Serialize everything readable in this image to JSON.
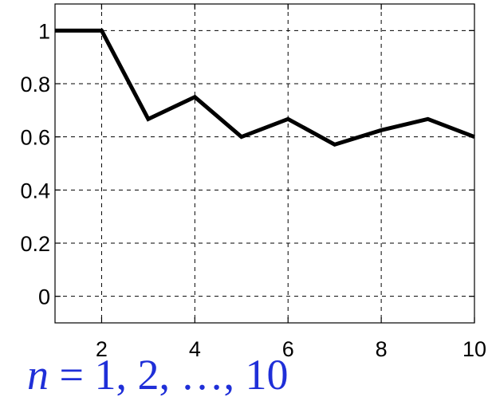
{
  "chart_data": {
    "type": "line",
    "title": "",
    "xlabel": "",
    "ylabel": "",
    "xlim": [
      1,
      10
    ],
    "ylim": [
      -0.1,
      1.1
    ],
    "xticks": [
      2,
      4,
      6,
      8,
      10
    ],
    "yticks": [
      0,
      0.2,
      0.4,
      0.6,
      0.8,
      1
    ],
    "xtick_labels": [
      "2",
      "4",
      "6",
      "8",
      "10"
    ],
    "ytick_labels": [
      "0",
      "0.2",
      "0.4",
      "0.6",
      "0.8",
      "1"
    ],
    "grid": true,
    "series": [
      {
        "x": [
          1,
          2,
          3,
          4,
          5,
          6,
          7,
          8,
          9,
          10
        ],
        "values": [
          1,
          1,
          0.667,
          0.75,
          0.6,
          0.667,
          0.571,
          0.625,
          0.667,
          0.6
        ],
        "color": "#000000"
      }
    ]
  },
  "caption": {
    "variable": "n",
    "equals": " = ",
    "values": "1, 2, …, 10",
    "color": "#1f2fd8"
  }
}
